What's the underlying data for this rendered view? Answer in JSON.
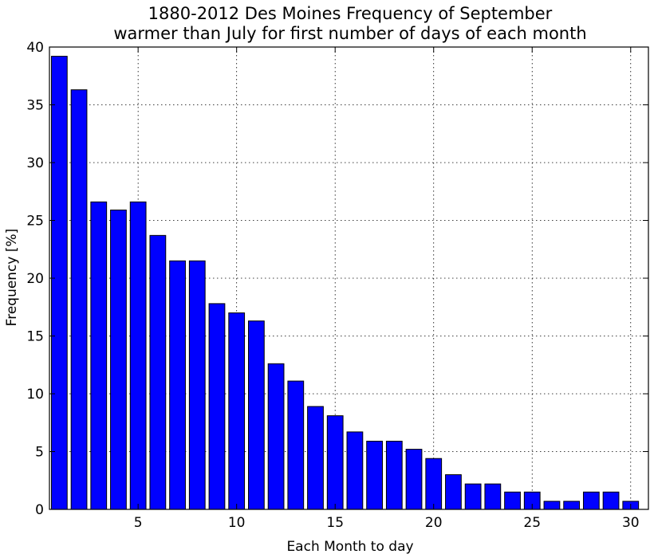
{
  "chart_data": {
    "type": "bar",
    "title_lines": [
      "1880-2012 Des Moines Frequency of September",
      "warmer than July for first number of days of each month"
    ],
    "xlabel": "Each Month to day",
    "ylabel": "Frequency [%]",
    "x": [
      1,
      2,
      3,
      4,
      5,
      6,
      7,
      8,
      9,
      10,
      11,
      12,
      13,
      14,
      15,
      16,
      17,
      18,
      19,
      20,
      21,
      22,
      23,
      24,
      25,
      26,
      27,
      28,
      29,
      30
    ],
    "values": [
      39.2,
      36.3,
      26.6,
      25.9,
      26.6,
      23.7,
      21.5,
      21.5,
      17.8,
      17.0,
      16.3,
      12.6,
      11.1,
      8.9,
      8.1,
      6.7,
      5.9,
      5.9,
      5.2,
      4.4,
      3.0,
      2.2,
      2.2,
      1.5,
      1.5,
      0.7,
      0.7,
      1.5,
      1.5,
      0.7
    ],
    "xlim": [
      0.5,
      30.9
    ],
    "ylim": [
      0,
      40
    ],
    "xticks": [
      5,
      10,
      15,
      20,
      25,
      30
    ],
    "yticks": [
      0,
      5,
      10,
      15,
      20,
      25,
      30,
      35,
      40
    ],
    "grid": true,
    "bar_color": "#0000ff"
  }
}
